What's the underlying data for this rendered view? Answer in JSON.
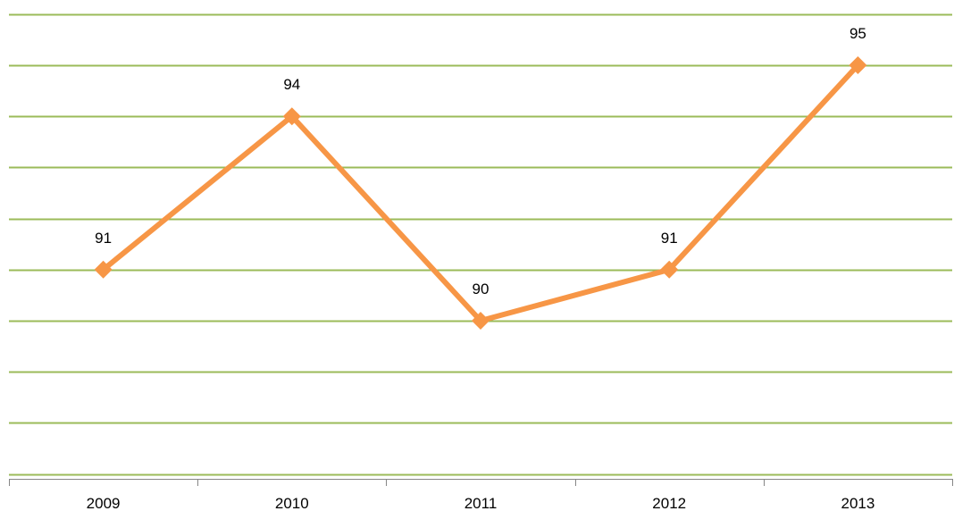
{
  "chart_data": {
    "type": "line",
    "categories": [
      "2009",
      "2010",
      "2011",
      "2012",
      "2013"
    ],
    "series": [
      {
        "values": [
          91,
          94,
          90,
          91,
          95
        ],
        "data_labels": [
          "91",
          "94",
          "90",
          "91",
          "95"
        ]
      }
    ],
    "ylim": [
      85.5,
      96
    ],
    "y_gridline_step": 1,
    "grid": true,
    "legend": "none",
    "colors": {
      "line": "#F79646",
      "grid": "#9BBB59",
      "axis": "#868686"
    }
  }
}
